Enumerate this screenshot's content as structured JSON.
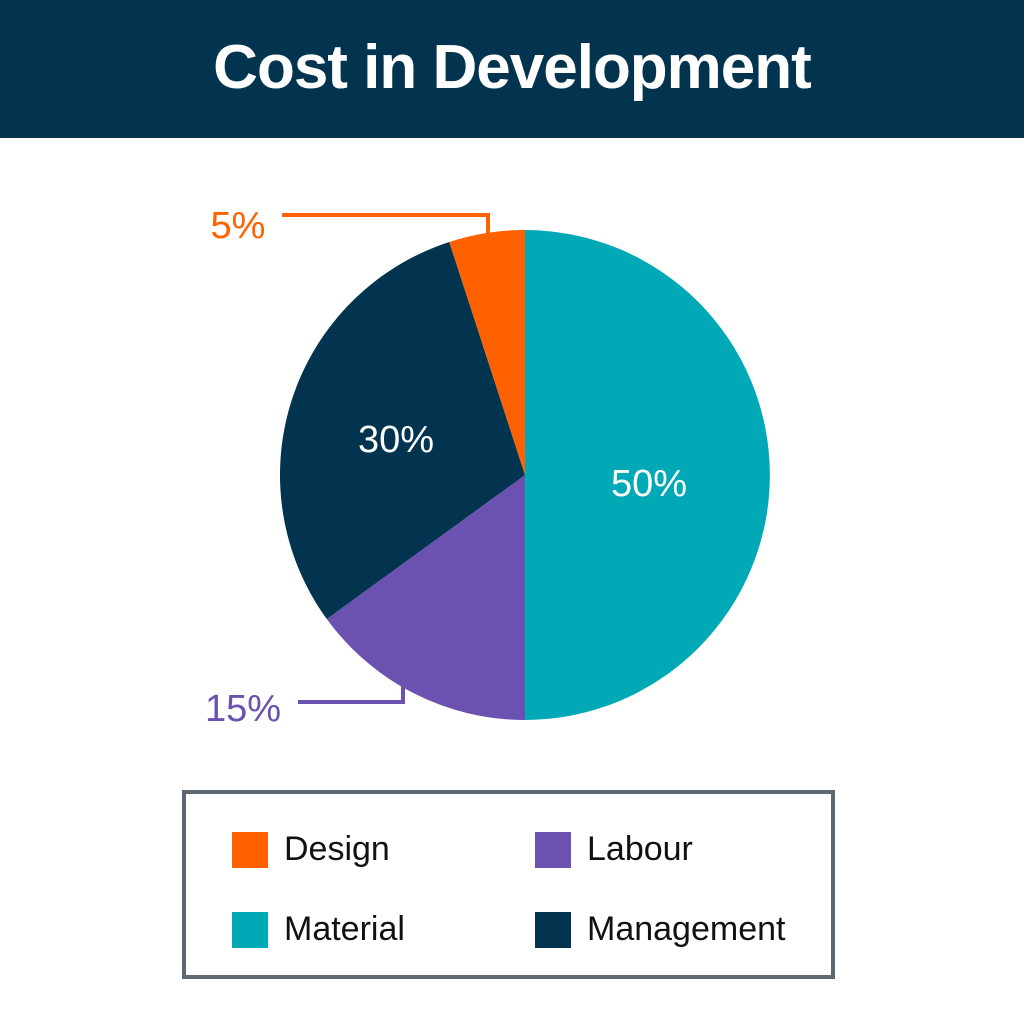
{
  "header": {
    "title": "Cost in Development"
  },
  "chart_data": {
    "type": "pie",
    "title": "Cost in Development",
    "slices": [
      {
        "name": "Material",
        "value": 50,
        "label": "50%",
        "color": "#00a9b5"
      },
      {
        "name": "Labour",
        "value": 15,
        "label": "15%",
        "color": "#6b52b0"
      },
      {
        "name": "Management",
        "value": 30,
        "label": "30%",
        "color": "#02344f"
      },
      {
        "name": "Design",
        "value": 5,
        "label": "5%",
        "color": "#ff6100"
      }
    ],
    "legend": {
      "placement": "bottom",
      "entries": [
        {
          "name": "Design",
          "color": "#ff6100"
        },
        {
          "name": "Labour",
          "color": "#6b52b0"
        },
        {
          "name": "Material",
          "color": "#00a9b5"
        },
        {
          "name": "Management",
          "color": "#02344f"
        }
      ]
    }
  }
}
